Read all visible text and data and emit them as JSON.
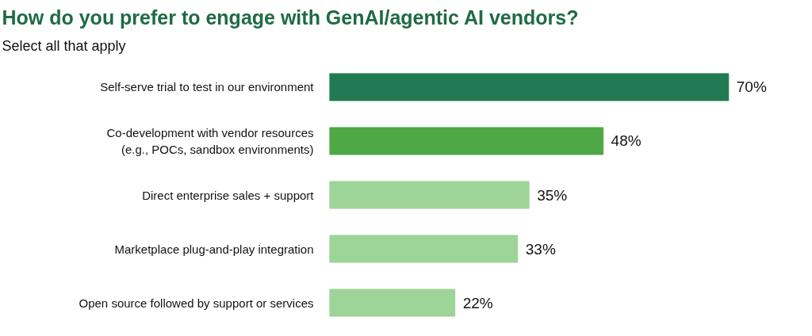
{
  "chart_data": {
    "type": "bar",
    "orientation": "horizontal",
    "title": "How do you prefer to engage with GenAI/agentic AI vendors?",
    "subtitle": "Select all that apply",
    "categories": [
      "Self-serve trial to test in our environment",
      "Co-development with vendor resources\n(e.g., POCs, sandbox environments)",
      "Direct enterprise sales + support",
      "Marketplace plug-and-play integration",
      "Open source followed by support or services"
    ],
    "values": [
      70,
      48,
      35,
      33,
      22
    ],
    "value_labels": [
      "70%",
      "48%",
      "35%",
      "33%",
      "22%"
    ],
    "colors": [
      "#217a52",
      "#4fa846",
      "#9dd497",
      "#9dd497",
      "#9dd497"
    ],
    "grid": false
  }
}
